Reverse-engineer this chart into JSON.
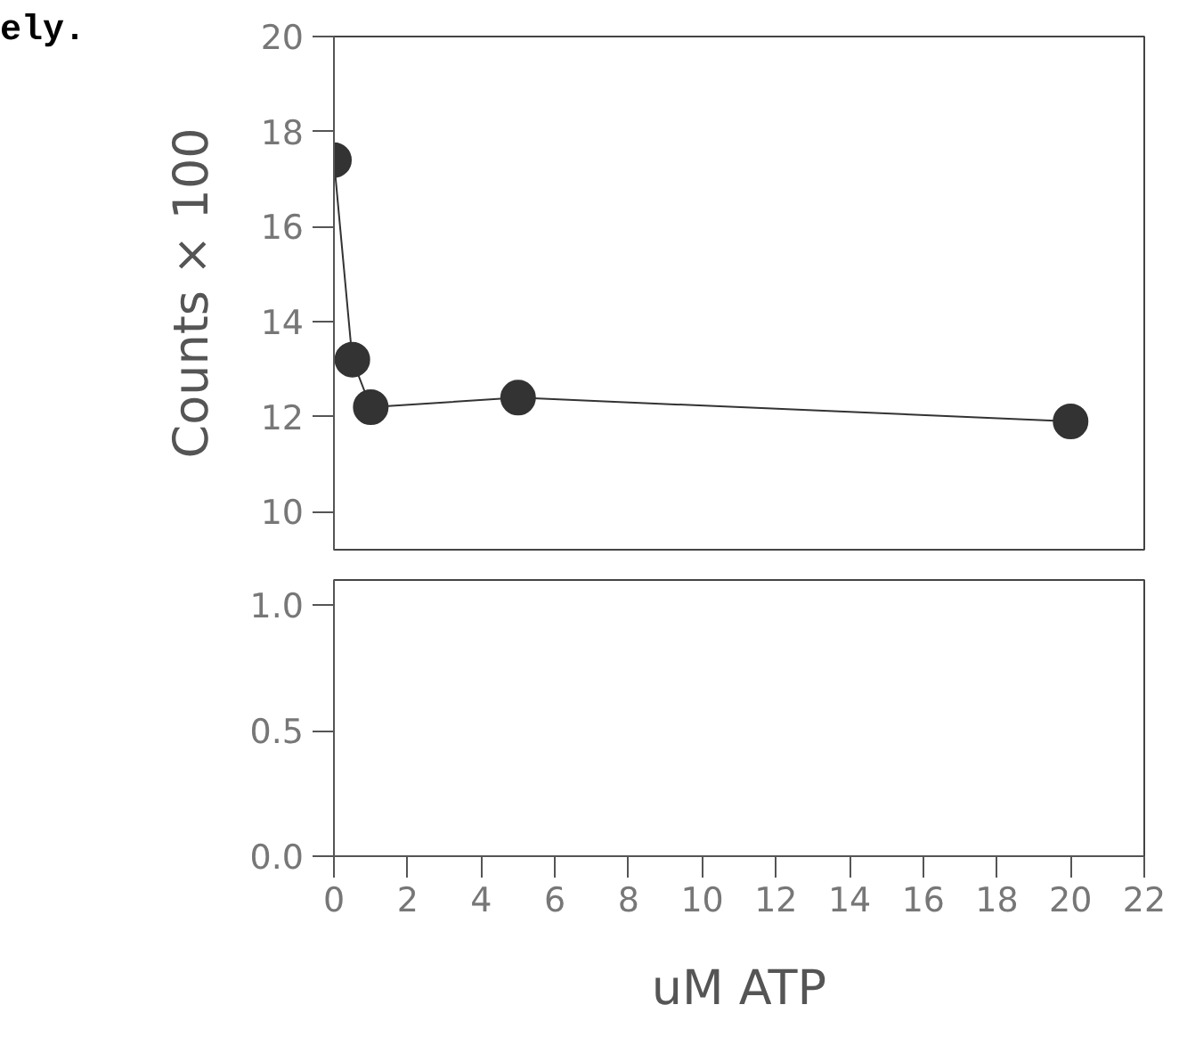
{
  "chart_data": [
    {
      "type": "line",
      "ylabel": "Counts × 100",
      "annotations": [
        "ely."
      ],
      "x": [
        0,
        0.5,
        1,
        5,
        20
      ],
      "series": [
        {
          "color": "#333333",
          "values": [
            17.4,
            13.2,
            12.2,
            12.4,
            11.9
          ]
        }
      ],
      "xlim": [
        0,
        22
      ],
      "ylim": [
        9.2,
        20
      ],
      "yticks": [
        10,
        12,
        14,
        16,
        18,
        20
      ],
      "tick_labels": "y",
      "marker": "circle",
      "line_style": "solid",
      "grid": false
    },
    {
      "type": "line",
      "xlabel": "uM ATP",
      "xlim": [
        0,
        22
      ],
      "xticks": [
        0,
        2,
        4,
        6,
        8,
        10,
        12,
        14,
        16,
        18,
        20,
        22
      ],
      "ylim": [
        0,
        1.1
      ],
      "yticks": [
        {
          "value": 0,
          "label": "0.0"
        },
        {
          "value": 0.5,
          "label": "0.5"
        },
        {
          "value": 1,
          "label": "1.0"
        }
      ]
    }
  ]
}
